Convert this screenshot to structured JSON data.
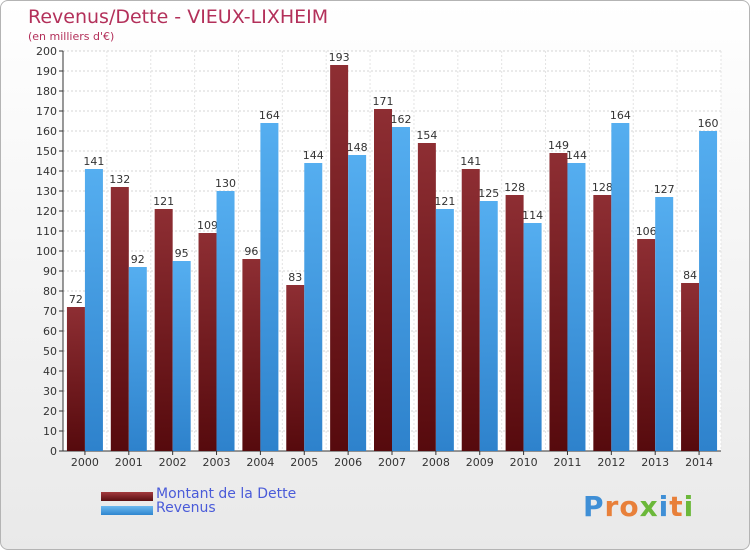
{
  "title": "Revenus/Dette - VIEUX-LIXHEIM",
  "subtitle": "(en milliers d'€)",
  "logo": "Proxiti",
  "colors": {
    "dette": "#8b2a2e",
    "revenus": "#4aa3e6",
    "title": "#b3305a",
    "legend_text": "#4a5bd9"
  },
  "chart_data": {
    "type": "bar",
    "categories": [
      "2000",
      "2001",
      "2002",
      "2003",
      "2004",
      "2005",
      "2006",
      "2007",
      "2008",
      "2009",
      "2010",
      "2011",
      "2012",
      "2013",
      "2014"
    ],
    "series": [
      {
        "name": "Montant de la Dette",
        "values": [
          72,
          132,
          121,
          109,
          96,
          83,
          193,
          171,
          154,
          141,
          128,
          149,
          128,
          106,
          84
        ]
      },
      {
        "name": "Revenus",
        "values": [
          141,
          92,
          95,
          130,
          164,
          144,
          148,
          162,
          121,
          125,
          114,
          144,
          164,
          127,
          160
        ]
      }
    ],
    "ylim": [
      0,
      200
    ],
    "yticks": [
      0,
      10,
      20,
      30,
      40,
      50,
      60,
      70,
      80,
      90,
      100,
      110,
      120,
      130,
      140,
      150,
      160,
      170,
      180,
      190,
      200
    ],
    "grid": true,
    "legend_position": "bottom-left"
  }
}
